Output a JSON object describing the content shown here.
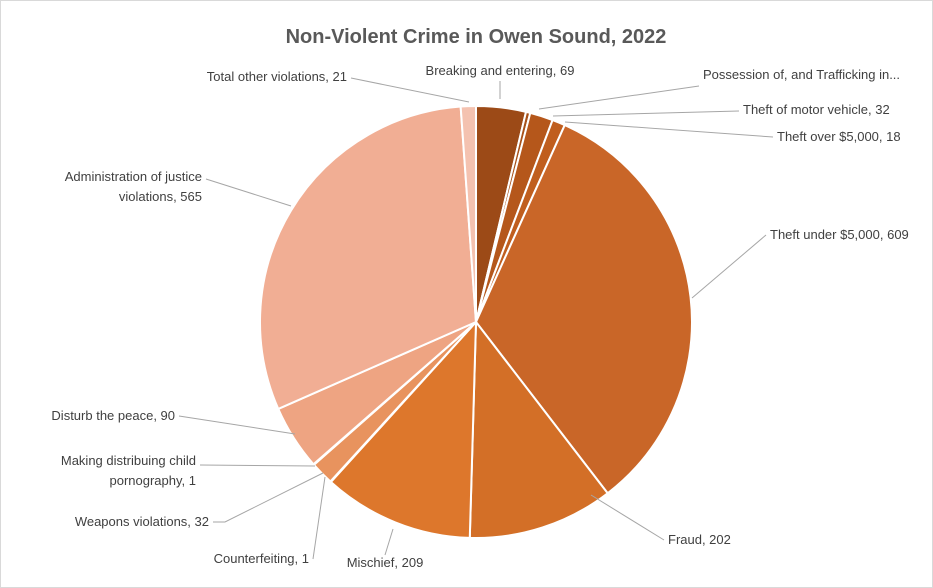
{
  "chart_data": {
    "type": "pie",
    "title": "Non-Violent Crime in Owen Sound, 2022",
    "slices": [
      {
        "label": "Breaking and entering, 69",
        "value": 69,
        "color": "#9c4a17"
      },
      {
        "label": "Possession of, and Trafficking in...",
        "value": 6,
        "color": "#a85119"
      },
      {
        "label": "Theft of motor vehicle, 32",
        "value": 32,
        "color": "#b5571b"
      },
      {
        "label": "Theft over $5,000, 18",
        "value": 18,
        "color": "#c05e1e"
      },
      {
        "label": "Theft under $5,000, 609",
        "value": 609,
        "color": "#c96628"
      },
      {
        "label": "Fraud, 202",
        "value": 202,
        "color": "#d36f27"
      },
      {
        "label": "Mischief, 209",
        "value": 209,
        "color": "#dd772c"
      },
      {
        "label": "Counterfeiting, 1",
        "value": 1,
        "color": "#e3874a"
      },
      {
        "label": "Weapons violations, 32",
        "value": 32,
        "color": "#e8935e"
      },
      {
        "label": "Making distribuing child pornography, 1",
        "value": 1,
        "color": "#eb9c6e"
      },
      {
        "label": "Disturb the peace, 90",
        "value": 90,
        "color": "#eea482"
      },
      {
        "label": "Administration of justice violations, 565",
        "value": 565,
        "color": "#f1ae94"
      },
      {
        "label": "Total other violations, 21",
        "value": 21,
        "color": "#f4c2b0"
      }
    ]
  }
}
